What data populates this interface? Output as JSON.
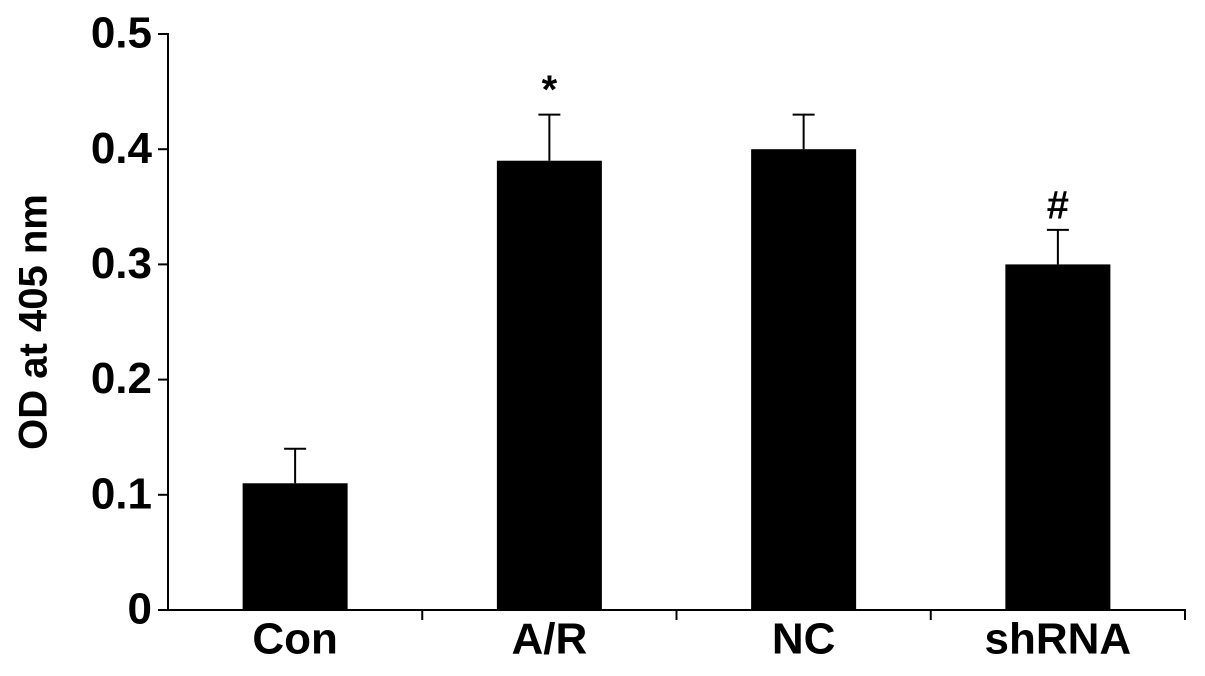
{
  "chart_data": {
    "type": "bar",
    "y_label": "OD at 405 nm",
    "categories": [
      "Con",
      "A/R",
      "NC",
      "shRNA"
    ],
    "series": [
      {
        "color": "#000000",
        "values": [
          0.11,
          0.39,
          0.4,
          0.3
        ],
        "errors": [
          0.03,
          0.04,
          0.03,
          0.03
        ],
        "annotations": [
          null,
          "*",
          null,
          "#"
        ]
      }
    ],
    "ylim": [
      0,
      0.5
    ],
    "yticks": [
      0,
      0.1,
      0.2,
      0.3,
      0.4,
      0.5
    ],
    "grid": false
  }
}
